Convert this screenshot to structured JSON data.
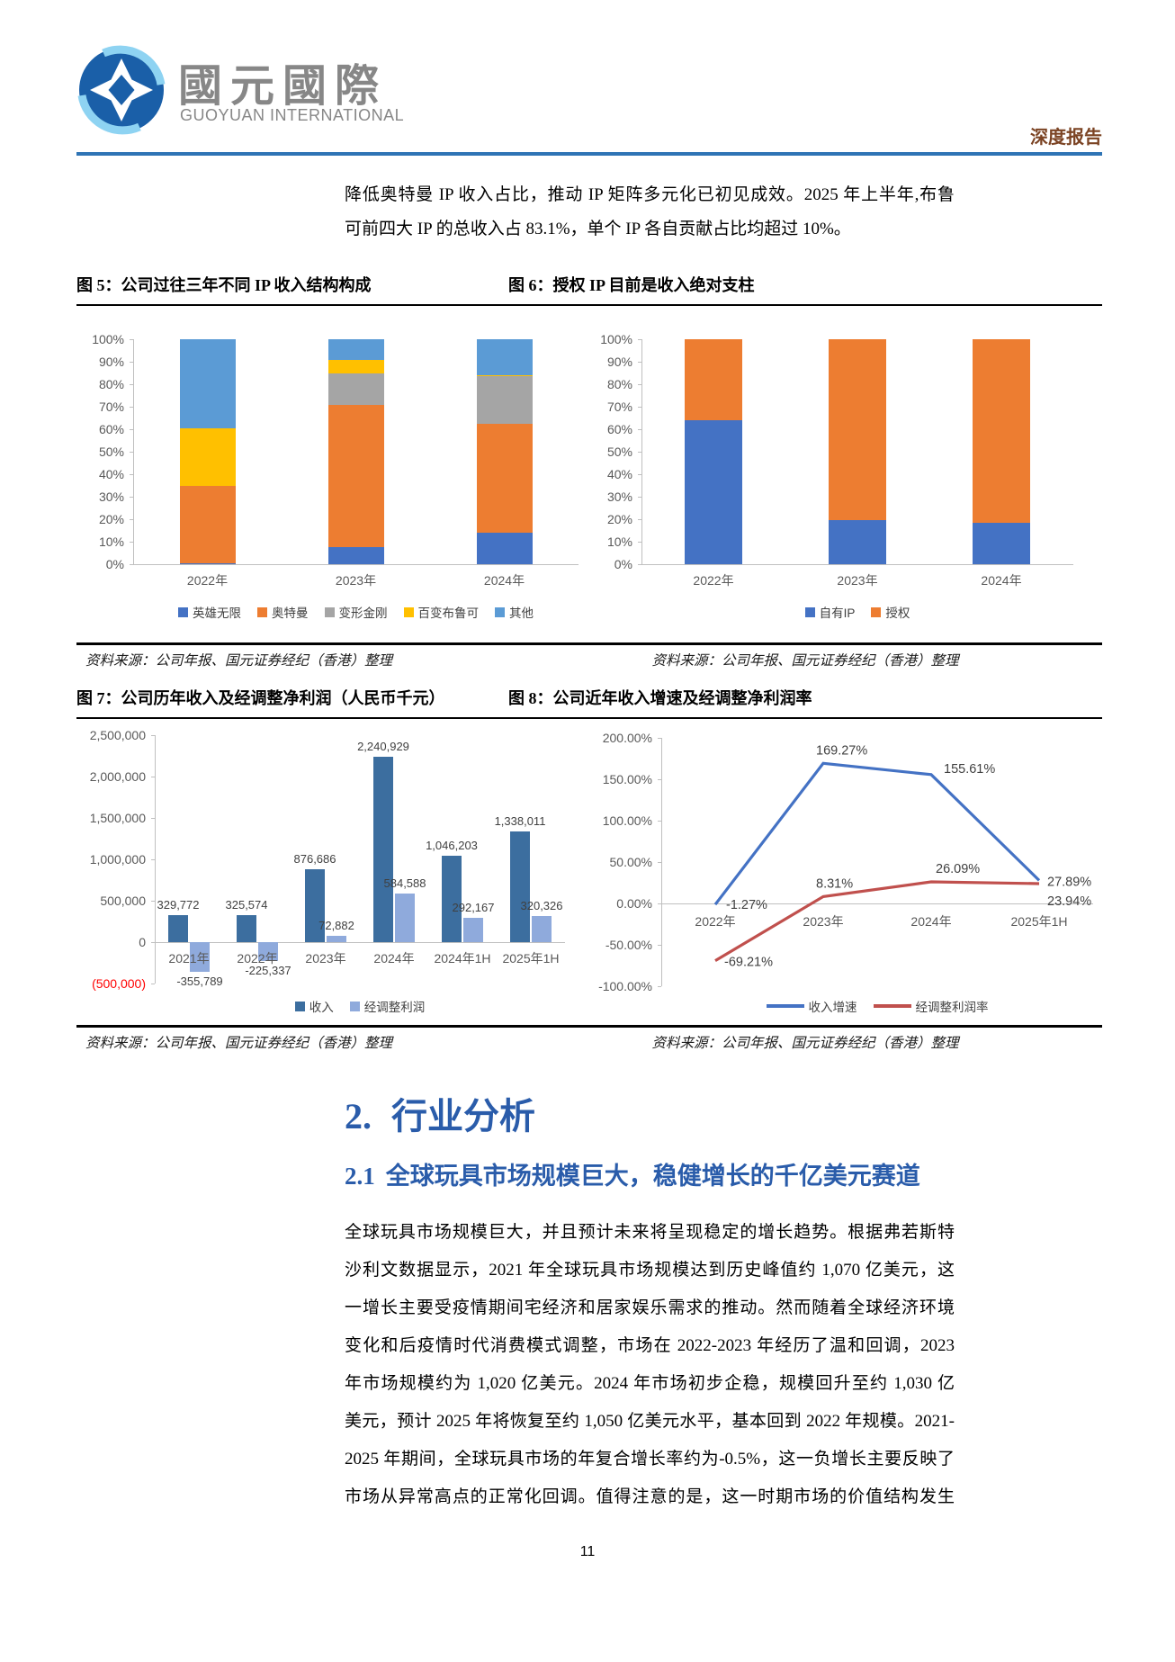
{
  "page": {
    "number": "11"
  },
  "header": {
    "logo_cn": "國元國際",
    "logo_en": "GUOYUAN INTERNATIONAL",
    "report_type": "深度报告",
    "rule_color": "#2E74B5",
    "report_type_color": "#7B4323"
  },
  "intro": {
    "line1": "降低奥特曼 IP 收入占比，推动 IP 矩阵多元化已初见成效。2025 年上半年,布鲁",
    "line2": "可前四大 IP 的总收入占 83.1%，单个 IP 各自贡献占比均超过 10%。"
  },
  "figures": {
    "fig5_title": "图 5：公司过往三年不同 IP 收入结构构成",
    "fig6_title": "图 6：授权 IP 目前是收入绝对支柱",
    "fig7_title": "图 7：公司历年收入及经调整净利润（人民币千元）",
    "fig8_title": "图 8：公司近年收入增速及经调整净利润率",
    "source": "资料来源：公司年报、国元证券经纪（香港）整理"
  },
  "section": {
    "h2_num": "2.",
    "h2_text": "行业分析",
    "h3_num": "2.1",
    "h3_text": "全球玩具市场规模巨大，稳健增长的千亿美元赛道",
    "heading_color": "#2A5CAA"
  },
  "body": {
    "lines": [
      "全球玩具市场规模巨大，并且预计未来将呈现稳定的增长趋势。根据弗若斯特",
      "沙利文数据显示，2021 年全球玩具市场规模达到历史峰值约 1,070 亿美元，这",
      "一增长主要受疫情期间宅经济和居家娱乐需求的推动。然而随着全球经济环境",
      "变化和后疫情时代消费模式调整，市场在 2022-2023 年经历了温和回调，2023",
      "年市场规模约为 1,020 亿美元。2024 年市场初步企稳，规模回升至约 1,030 亿",
      "美元，预计 2025 年将恢复至约 1,050 亿美元水平，基本回到 2022 年规模。2021-",
      "2025 年期间，全球玩具市场的年复合增长率约为-0.5%，这一负增长主要反映了",
      "市场从异常高点的正常化回调。值得注意的是，这一时期市场的价值结构发生"
    ]
  },
  "chart_data": [
    {
      "id": "fig5",
      "type": "bar",
      "stacked": true,
      "percent_axis": true,
      "title": "图 5：公司过往三年不同 IP 收入结构构成",
      "categories": [
        "2022年",
        "2023年",
        "2024年"
      ],
      "series": [
        {
          "name": "英雄无限",
          "color": "#4472C4",
          "values": [
            0.5,
            7.5,
            14
          ]
        },
        {
          "name": "奥特曼",
          "color": "#ED7D31",
          "values": [
            34.5,
            63.5,
            48.5
          ]
        },
        {
          "name": "变形金刚",
          "color": "#A5A5A5",
          "values": [
            0,
            14,
            21
          ]
        },
        {
          "name": "百变布鲁可",
          "color": "#FFC000",
          "values": [
            25.5,
            6,
            0.7
          ]
        },
        {
          "name": "其他",
          "color": "#5B9BD5",
          "values": [
            39.5,
            9,
            15.8
          ]
        }
      ],
      "y_ticks": [
        "100%",
        "90%",
        "80%",
        "70%",
        "60%",
        "50%",
        "40%",
        "30%",
        "20%",
        "10%",
        "0%"
      ],
      "ylim": [
        0,
        100
      ],
      "grid": false,
      "legend_position": "bottom"
    },
    {
      "id": "fig6",
      "type": "bar",
      "stacked": true,
      "percent_axis": true,
      "title": "图 6：授权 IP 目前是收入绝对支柱",
      "categories": [
        "2022年",
        "2023年",
        "2024年"
      ],
      "series": [
        {
          "name": "自有IP",
          "color": "#4472C4",
          "values": [
            64,
            19.5,
            18.5
          ]
        },
        {
          "name": "授权",
          "color": "#ED7D31",
          "values": [
            36,
            80.5,
            81.5
          ]
        }
      ],
      "y_ticks": [
        "100%",
        "90%",
        "80%",
        "70%",
        "60%",
        "50%",
        "40%",
        "30%",
        "20%",
        "10%",
        "0%"
      ],
      "ylim": [
        0,
        100
      ],
      "grid": false,
      "legend_position": "bottom"
    },
    {
      "id": "fig7",
      "type": "bar",
      "stacked": false,
      "title": "图 7：公司历年收入及经调整净利润（人民币千元）",
      "categories": [
        "2021年",
        "2022年",
        "2023年",
        "2024年",
        "2024年1H",
        "2025年1H"
      ],
      "series": [
        {
          "name": "收入",
          "color": "#3C6E9F",
          "values": [
            329772,
            325574,
            876686,
            2240929,
            1046203,
            1338011
          ],
          "labels": [
            "329,772",
            "325,574",
            "876,686",
            "2,240,929",
            "1,046,203",
            "1,338,011"
          ]
        },
        {
          "name": "经调整利润",
          "color": "#8FAADC",
          "values": [
            -355789,
            -225337,
            72882,
            584588,
            292167,
            320326
          ],
          "labels": [
            "-355,789",
            "-225,337",
            "72,882",
            "584,588",
            "292,167",
            "320,326"
          ]
        }
      ],
      "y_ticks": [
        "2,500,000",
        "2,000,000",
        "1,500,000",
        "1,000,000",
        "500,000",
        "0",
        "(500,000)"
      ],
      "ylim": [
        -500000,
        2500000
      ],
      "negative_tick_color": "#FF0000",
      "grid": false,
      "legend_position": "bottom"
    },
    {
      "id": "fig8",
      "type": "line",
      "title": "图 8：公司近年收入增速及经调整净利润率",
      "x": [
        "2022年",
        "2023年",
        "2024年",
        "2025年1H"
      ],
      "series": [
        {
          "name": "收入增速",
          "color": "#4472C4",
          "values": [
            -1.27,
            169.27,
            155.61,
            27.89
          ],
          "labels": [
            "-1.27%",
            "169.27%",
            "155.61%",
            "27.89%"
          ]
        },
        {
          "name": "经调整利润率",
          "color": "#C0504D",
          "values": [
            -69.21,
            8.31,
            26.09,
            23.94
          ],
          "labels": [
            "-69.21%",
            "8.31%",
            "26.09%",
            "23.94%"
          ]
        }
      ],
      "y_ticks": [
        "200.00%",
        "150.00%",
        "100.00%",
        "50.00%",
        "0.00%",
        "-50.00%",
        "-100.00%"
      ],
      "ylim": [
        -100,
        200
      ],
      "grid": false,
      "legend_position": "bottom"
    }
  ]
}
